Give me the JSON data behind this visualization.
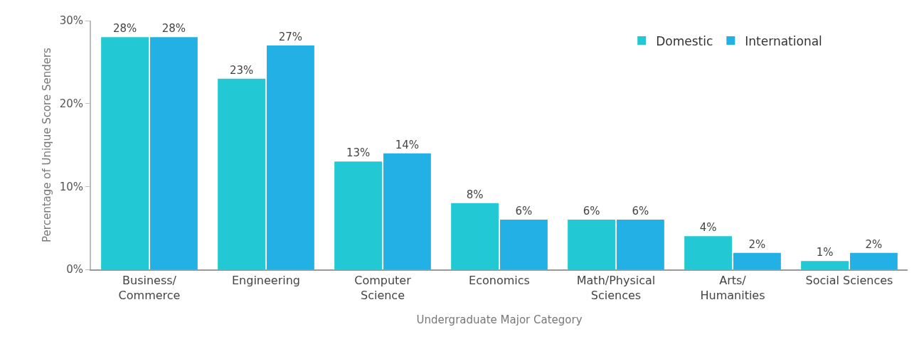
{
  "chart_data": {
    "type": "bar",
    "xlabel": "Undergraduate Major Category",
    "ylabel": "Percentage of Unique Score Senders",
    "categories": [
      "Business/\nCommerce",
      "Engineering",
      "Computer\nScience",
      "Economics",
      "Math/Physical\nSciences",
      "Arts/\nHumanities",
      "Social Sciences"
    ],
    "series": [
      {
        "name": "Domestic",
        "color": "#22c8d3",
        "values": [
          28,
          23,
          13,
          8,
          6,
          4,
          1
        ],
        "value_labels": [
          "28%",
          "23%",
          "13%",
          "8%",
          "6%",
          "4%",
          "1%"
        ]
      },
      {
        "name": "International",
        "color": "#23b0e4",
        "values": [
          28,
          27,
          14,
          6,
          6,
          2,
          2
        ],
        "value_labels": [
          "28%",
          "27%",
          "14%",
          "6%",
          "6%",
          "2%",
          "2%"
        ]
      }
    ],
    "ylim": [
      0,
      30
    ],
    "yticks": [
      {
        "value": 0,
        "label": "0%"
      },
      {
        "value": 10,
        "label": "10%"
      },
      {
        "value": 20,
        "label": "20%"
      },
      {
        "value": 30,
        "label": "30%"
      }
    ],
    "legend": "top right"
  }
}
